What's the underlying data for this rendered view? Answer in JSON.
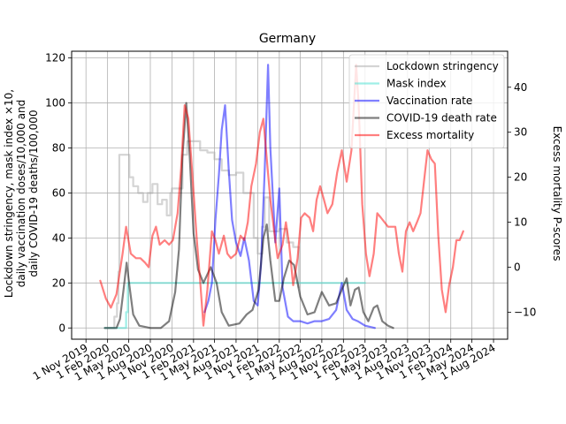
{
  "chart_data": {
    "type": "line",
    "title": "Germany",
    "ylabel_left": [
      "Lockdown stringency, mask index ×10,",
      "daily vaccination doses/10,000 and",
      "daily COVID-19 deaths/100,000"
    ],
    "ylabel_right": "Excess mortality P-scores",
    "x_type": "date",
    "xlim": [
      "2019-09-01",
      "2024-09-30"
    ],
    "ylim_left": [
      -5,
      123
    ],
    "ylim_right": [
      -16,
      48
    ],
    "grid": true,
    "legend_position": "top-right",
    "x_ticks": [
      "2019-11-01",
      "2020-02-01",
      "2020-05-01",
      "2020-08-01",
      "2020-11-01",
      "2021-02-01",
      "2021-05-01",
      "2021-08-01",
      "2021-11-01",
      "2022-02-01",
      "2022-05-01",
      "2022-08-01",
      "2022-11-01",
      "2023-02-01",
      "2023-05-01",
      "2023-08-01",
      "2023-11-01",
      "2024-02-01",
      "2024-05-01",
      "2024-08-01"
    ],
    "x_tick_labels": [
      "1 Nov 2019",
      "1 Feb 2020",
      "1 May 2020",
      "1 Aug 2020",
      "1 Nov 2020",
      "1 Feb 2021",
      "1 May 2021",
      "1 Aug 2021",
      "1 Nov 2021",
      "1 Feb 2022",
      "1 May 2022",
      "1 Aug 2022",
      "1 Nov 2022",
      "1 Feb 2023",
      "1 May 2023",
      "1 Aug 2023",
      "1 Nov 2023",
      "1 Feb 2024",
      "1 May 2024",
      "1 Aug 2024"
    ],
    "y_ticks_left": [
      0,
      20,
      40,
      60,
      80,
      100,
      120
    ],
    "y_ticks_right": [
      -10,
      0,
      10,
      20,
      30,
      40
    ],
    "series": [
      {
        "name": "Lockdown stringency",
        "axis": "left",
        "step": true,
        "color": "#a9a9a9",
        "points": [
          [
            "2020-01-20",
            0
          ],
          [
            "2020-03-01",
            5
          ],
          [
            "2020-03-12",
            11
          ],
          [
            "2020-03-18",
            25
          ],
          [
            "2020-03-22",
            77
          ],
          [
            "2020-05-04",
            67
          ],
          [
            "2020-05-20",
            63
          ],
          [
            "2020-06-10",
            60
          ],
          [
            "2020-07-01",
            56
          ],
          [
            "2020-07-20",
            60
          ],
          [
            "2020-08-10",
            64
          ],
          [
            "2020-09-01",
            55
          ],
          [
            "2020-09-20",
            57
          ],
          [
            "2020-10-10",
            50
          ],
          [
            "2020-10-25",
            60
          ],
          [
            "2020-11-01",
            62
          ],
          [
            "2020-12-16",
            77
          ],
          [
            "2021-01-05",
            83
          ],
          [
            "2021-03-01",
            79
          ],
          [
            "2021-04-01",
            78
          ],
          [
            "2021-05-01",
            75
          ],
          [
            "2021-06-01",
            70
          ],
          [
            "2021-07-01",
            68
          ],
          [
            "2021-08-01",
            69
          ],
          [
            "2021-09-01",
            60
          ],
          [
            "2021-10-15",
            40
          ],
          [
            "2021-11-01",
            33
          ],
          [
            "2021-11-20",
            45
          ],
          [
            "2021-12-01",
            58
          ],
          [
            "2021-12-20",
            43
          ],
          [
            "2022-02-01",
            44
          ],
          [
            "2022-03-05",
            38
          ],
          [
            "2022-04-01",
            36
          ],
          [
            "2022-04-25",
            18
          ]
        ]
      },
      {
        "name": "Mask index",
        "axis": "left",
        "step": true,
        "color": "#40e0d0",
        "points": [
          [
            "2020-01-20",
            0
          ],
          [
            "2020-04-20",
            7
          ],
          [
            "2020-04-27",
            20
          ],
          [
            "2023-02-01",
            20
          ]
        ]
      },
      {
        "name": "Vaccination rate",
        "axis": "left",
        "step": false,
        "color": "#0000ff",
        "points": [
          [
            "2021-03-20",
            7
          ],
          [
            "2021-04-05",
            12
          ],
          [
            "2021-04-20",
            20
          ],
          [
            "2021-05-05",
            48
          ],
          [
            "2021-05-20",
            68
          ],
          [
            "2021-06-01",
            88
          ],
          [
            "2021-06-15",
            99
          ],
          [
            "2021-07-01",
            70
          ],
          [
            "2021-07-15",
            48
          ],
          [
            "2021-08-01",
            38
          ],
          [
            "2021-08-20",
            32
          ],
          [
            "2021-09-05",
            40
          ],
          [
            "2021-09-25",
            30
          ],
          [
            "2021-10-15",
            12
          ],
          [
            "2021-11-01",
            10
          ],
          [
            "2021-11-15",
            28
          ],
          [
            "2021-12-01",
            70
          ],
          [
            "2021-12-15",
            117
          ],
          [
            "2021-12-25",
            80
          ],
          [
            "2022-01-15",
            38
          ],
          [
            "2022-02-01",
            62
          ],
          [
            "2022-02-15",
            18
          ],
          [
            "2022-03-10",
            5
          ],
          [
            "2022-04-01",
            3
          ],
          [
            "2022-05-01",
            3
          ],
          [
            "2022-06-01",
            2
          ],
          [
            "2022-07-01",
            3
          ],
          [
            "2022-08-01",
            3
          ],
          [
            "2022-09-01",
            4
          ],
          [
            "2022-10-01",
            8
          ],
          [
            "2022-10-25",
            20
          ],
          [
            "2022-11-15",
            8
          ],
          [
            "2022-12-10",
            4
          ],
          [
            "2023-01-01",
            3
          ],
          [
            "2023-02-01",
            1
          ],
          [
            "2023-03-15",
            0
          ]
        ]
      },
      {
        "name": "COVID-19 death rate",
        "axis": "left",
        "step": false,
        "color": "#000000",
        "points": [
          [
            "2020-01-20",
            0
          ],
          [
            "2020-03-10",
            0
          ],
          [
            "2020-03-25",
            4
          ],
          [
            "2020-04-10",
            18
          ],
          [
            "2020-04-22",
            29
          ],
          [
            "2020-05-05",
            18
          ],
          [
            "2020-05-20",
            6
          ],
          [
            "2020-06-15",
            1
          ],
          [
            "2020-08-01",
            0
          ],
          [
            "2020-09-15",
            0
          ],
          [
            "2020-10-20",
            3
          ],
          [
            "2020-11-15",
            16
          ],
          [
            "2020-12-01",
            35
          ],
          [
            "2020-12-15",
            75
          ],
          [
            "2021-01-01",
            100
          ],
          [
            "2021-01-15",
            78
          ],
          [
            "2021-02-01",
            42
          ],
          [
            "2021-02-20",
            26
          ],
          [
            "2021-03-15",
            20
          ],
          [
            "2021-04-15",
            27
          ],
          [
            "2021-05-10",
            20
          ],
          [
            "2021-06-01",
            7
          ],
          [
            "2021-07-01",
            1
          ],
          [
            "2021-08-15",
            2
          ],
          [
            "2021-09-15",
            6
          ],
          [
            "2021-10-10",
            8
          ],
          [
            "2021-11-05",
            17
          ],
          [
            "2021-11-25",
            40
          ],
          [
            "2021-12-10",
            46
          ],
          [
            "2021-12-25",
            30
          ],
          [
            "2022-01-15",
            12
          ],
          [
            "2022-02-01",
            12
          ],
          [
            "2022-02-20",
            22
          ],
          [
            "2022-03-15",
            30
          ],
          [
            "2022-04-05",
            28
          ],
          [
            "2022-05-01",
            14
          ],
          [
            "2022-06-01",
            6
          ],
          [
            "2022-07-01",
            7
          ],
          [
            "2022-08-01",
            16
          ],
          [
            "2022-09-01",
            10
          ],
          [
            "2022-10-01",
            11
          ],
          [
            "2022-10-25",
            17
          ],
          [
            "2022-11-15",
            22
          ],
          [
            "2022-12-01",
            10
          ],
          [
            "2022-12-20",
            17
          ],
          [
            "2023-01-05",
            18
          ],
          [
            "2023-01-25",
            7
          ],
          [
            "2023-02-15",
            3
          ],
          [
            "2023-03-10",
            9
          ],
          [
            "2023-03-25",
            10
          ],
          [
            "2023-04-15",
            3
          ],
          [
            "2023-05-10",
            1
          ],
          [
            "2023-06-01",
            0
          ]
        ]
      },
      {
        "name": "Excess mortality",
        "axis": "right",
        "step": false,
        "color": "#ff0000",
        "points": [
          [
            "2020-01-01",
            -3
          ],
          [
            "2020-01-25",
            -7
          ],
          [
            "2020-02-15",
            -9
          ],
          [
            "2020-03-10",
            -6
          ],
          [
            "2020-04-05",
            3
          ],
          [
            "2020-04-20",
            9
          ],
          [
            "2020-05-10",
            3
          ],
          [
            "2020-06-01",
            2
          ],
          [
            "2020-06-20",
            2
          ],
          [
            "2020-07-10",
            1
          ],
          [
            "2020-07-25",
            0
          ],
          [
            "2020-08-10",
            7
          ],
          [
            "2020-08-25",
            9
          ],
          [
            "2020-09-10",
            5
          ],
          [
            "2020-10-01",
            6
          ],
          [
            "2020-10-20",
            5
          ],
          [
            "2020-11-05",
            6
          ],
          [
            "2020-11-25",
            12
          ],
          [
            "2020-12-10",
            22
          ],
          [
            "2020-12-25",
            36
          ],
          [
            "2021-01-10",
            33
          ],
          [
            "2021-01-25",
            22
          ],
          [
            "2021-02-15",
            6
          ],
          [
            "2021-03-01",
            -3
          ],
          [
            "2021-03-15",
            -13
          ],
          [
            "2021-04-01",
            -5
          ],
          [
            "2021-04-20",
            8
          ],
          [
            "2021-05-05",
            6
          ],
          [
            "2021-05-20",
            3
          ],
          [
            "2021-06-10",
            7
          ],
          [
            "2021-06-25",
            3
          ],
          [
            "2021-07-10",
            2
          ],
          [
            "2021-08-01",
            3
          ],
          [
            "2021-08-20",
            7
          ],
          [
            "2021-09-05",
            6
          ],
          [
            "2021-09-20",
            10
          ],
          [
            "2021-10-05",
            18
          ],
          [
            "2021-10-25",
            23
          ],
          [
            "2021-11-10",
            30
          ],
          [
            "2021-11-25",
            33
          ],
          [
            "2021-12-10",
            24
          ],
          [
            "2021-12-25",
            15
          ],
          [
            "2022-01-10",
            8
          ],
          [
            "2022-01-25",
            2
          ],
          [
            "2022-02-15",
            5
          ],
          [
            "2022-03-01",
            10
          ],
          [
            "2022-03-15",
            5
          ],
          [
            "2022-04-01",
            -4
          ],
          [
            "2022-04-20",
            2
          ],
          [
            "2022-05-05",
            11
          ],
          [
            "2022-05-20",
            12
          ],
          [
            "2022-06-10",
            11
          ],
          [
            "2022-06-25",
            8
          ],
          [
            "2022-07-10",
            15
          ],
          [
            "2022-07-25",
            18
          ],
          [
            "2022-08-10",
            15
          ],
          [
            "2022-08-25",
            12
          ],
          [
            "2022-09-15",
            14
          ],
          [
            "2022-10-05",
            21
          ],
          [
            "2022-10-25",
            26
          ],
          [
            "2022-11-15",
            19
          ],
          [
            "2022-12-05",
            26
          ],
          [
            "2022-12-25",
            45
          ],
          [
            "2023-01-05",
            36
          ],
          [
            "2023-01-20",
            14
          ],
          [
            "2023-02-05",
            3
          ],
          [
            "2023-02-20",
            -2
          ],
          [
            "2023-03-10",
            3
          ],
          [
            "2023-03-25",
            12
          ],
          [
            "2023-04-10",
            11
          ],
          [
            "2023-04-25",
            10
          ],
          [
            "2023-05-10",
            9
          ],
          [
            "2023-05-25",
            9
          ],
          [
            "2023-06-10",
            9
          ],
          [
            "2023-06-25",
            3
          ],
          [
            "2023-07-10",
            -1
          ],
          [
            "2023-07-25",
            8
          ],
          [
            "2023-08-10",
            10
          ],
          [
            "2023-08-25",
            8
          ],
          [
            "2023-09-10",
            10
          ],
          [
            "2023-09-25",
            12
          ],
          [
            "2023-10-10",
            19
          ],
          [
            "2023-10-25",
            26
          ],
          [
            "2023-11-10",
            24
          ],
          [
            "2023-11-25",
            23
          ],
          [
            "2023-12-10",
            7
          ],
          [
            "2023-12-25",
            -5
          ],
          [
            "2024-01-10",
            -10
          ],
          [
            "2024-01-25",
            -4
          ],
          [
            "2024-02-10",
            0
          ],
          [
            "2024-02-25",
            6
          ],
          [
            "2024-03-10",
            6
          ],
          [
            "2024-03-25",
            8
          ]
        ]
      }
    ]
  }
}
